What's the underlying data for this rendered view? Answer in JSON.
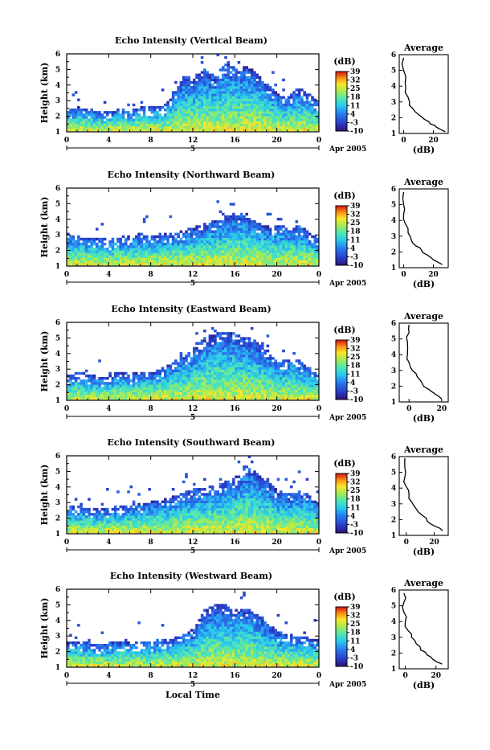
{
  "figure": {
    "date_label": "Apr 2005",
    "day_label": "5",
    "bottom_xlabel": "Local Time",
    "ylabel": "Height (km)",
    "colorbar_unit": "(dB)",
    "colorbar_ticks": [
      "39",
      "32",
      "25",
      "18",
      "11",
      "4",
      "-3",
      "-10"
    ],
    "avg_title": "Average",
    "avg_xlabel": "(dB)"
  },
  "panels": [
    {
      "title": "Echo Intensity (Vertical Beam)",
      "avg_xticks": [
        "0",
        "20"
      ]
    },
    {
      "title": "Echo Intensity (Northward Beam)",
      "avg_xticks": [
        "0",
        "20"
      ]
    },
    {
      "title": "Echo Intensity (Eastward Beam)",
      "avg_xticks": [
        "0",
        "20"
      ]
    },
    {
      "title": "Echo Intensity (Southward Beam)",
      "avg_xticks": [
        "0",
        "20"
      ]
    },
    {
      "title": "Echo Intensity (Westward Beam)",
      "avg_xticks": [
        "0",
        "20"
      ]
    }
  ],
  "chart_data": [
    {
      "type": "heatmap",
      "title": "Echo Intensity (Vertical Beam)",
      "xlabel": "",
      "ylabel": "Height (km)",
      "xlim": [
        0,
        24
      ],
      "ylim": [
        1,
        6
      ],
      "xticks": [
        "0",
        "4",
        "8",
        "12",
        "16",
        "20",
        "0"
      ],
      "yticks": [
        "1",
        "2",
        "3",
        "4",
        "5",
        "6"
      ],
      "colorbar": {
        "unit": "dB",
        "range": [
          -10,
          39
        ],
        "ticks": [
          39,
          32,
          25,
          18,
          11,
          4,
          -3,
          -10
        ]
      },
      "echo_top_km": [
        2.3,
        2.5,
        2.4,
        2.3,
        2.2,
        2.4,
        2.3,
        2.5,
        2.6,
        2.5,
        3.3,
        4.5,
        4.5,
        4.9,
        4.5,
        5.3,
        5.0,
        5.1,
        4.7,
        4.0,
        3.3,
        3.2,
        3.8,
        3.3,
        2.8
      ],
      "average_profile": {
        "x_db": [
          28,
          22,
          18,
          14,
          10,
          6,
          4,
          1,
          1,
          0,
          0
        ],
        "height_km": [
          1.1,
          1.4,
          1.6,
          1.9,
          2.2,
          2.6,
          3.0,
          3.6,
          4.2,
          5.0,
          5.8
        ],
        "xlim": [
          -3,
          30
        ]
      }
    },
    {
      "type": "heatmap",
      "title": "Echo Intensity (Northward Beam)",
      "xlabel": "",
      "ylabel": "Height (km)",
      "xlim": [
        0,
        24
      ],
      "ylim": [
        1,
        6
      ],
      "xticks": [
        "0",
        "4",
        "8",
        "12",
        "16",
        "20",
        "0"
      ],
      "yticks": [
        "1",
        "2",
        "3",
        "4",
        "5",
        "6"
      ],
      "colorbar": {
        "unit": "dB",
        "range": [
          -10,
          39
        ],
        "ticks": [
          39,
          32,
          25,
          18,
          11,
          4,
          -3,
          -10
        ]
      },
      "echo_top_km": [
        3.0,
        2.9,
        2.8,
        2.7,
        2.6,
        2.8,
        2.9,
        3.0,
        2.9,
        3.0,
        3.0,
        3.2,
        3.4,
        3.7,
        3.8,
        4.2,
        4.3,
        4.4,
        3.7,
        3.5,
        3.6,
        3.4,
        3.6,
        3.0,
        2.8
      ],
      "average_profile": {
        "x_db": [
          26,
          20,
          16,
          12,
          8,
          5,
          3,
          1,
          0,
          0,
          0
        ],
        "height_km": [
          1.2,
          1.5,
          1.8,
          2.1,
          2.4,
          2.8,
          3.2,
          3.8,
          4.4,
          5.0,
          5.8
        ],
        "xlim": [
          -3,
          30
        ]
      }
    },
    {
      "type": "heatmap",
      "title": "Echo Intensity (Eastward Beam)",
      "xlabel": "",
      "ylabel": "Height (km)",
      "xlim": [
        0,
        24
      ],
      "ylim": [
        1,
        6
      ],
      "xticks": [
        "0",
        "4",
        "8",
        "12",
        "16",
        "20",
        "0"
      ],
      "yticks": [
        "1",
        "2",
        "3",
        "4",
        "5",
        "6"
      ],
      "colorbar": {
        "unit": "dB",
        "range": [
          -10,
          39
        ],
        "ticks": [
          39,
          32,
          25,
          18,
          11,
          4,
          -3,
          -10
        ]
      },
      "echo_top_km": [
        2.6,
        2.7,
        2.6,
        2.4,
        2.5,
        2.7,
        2.6,
        2.8,
        2.7,
        3.0,
        3.4,
        3.7,
        4.2,
        5.0,
        5.2,
        5.3,
        5.2,
        5.0,
        4.7,
        4.1,
        3.4,
        3.6,
        3.5,
        3.0,
        2.6
      ],
      "average_profile": {
        "x_db": [
          20,
          16,
          12,
          8,
          5,
          2,
          0,
          -1,
          -1,
          0,
          0
        ],
        "height_km": [
          1.2,
          1.5,
          1.8,
          2.2,
          2.6,
          3.0,
          3.5,
          4.0,
          4.8,
          5.4,
          5.9
        ],
        "xlim": [
          -6,
          24
        ]
      }
    },
    {
      "type": "heatmap",
      "title": "Echo Intensity (Southward Beam)",
      "xlabel": "",
      "ylabel": "Height (km)",
      "xlim": [
        0,
        24
      ],
      "ylim": [
        1,
        6
      ],
      "xticks": [
        "0",
        "4",
        "8",
        "12",
        "16",
        "20",
        "0"
      ],
      "yticks": [
        "1",
        "2",
        "3",
        "4",
        "5",
        "6"
      ],
      "colorbar": {
        "unit": "dB",
        "range": [
          -10,
          39
        ],
        "ticks": [
          39,
          32,
          25,
          18,
          11,
          4,
          -3,
          -10
        ]
      },
      "echo_top_km": [
        2.8,
        2.7,
        2.6,
        2.5,
        2.6,
        2.7,
        2.8,
        2.9,
        3.0,
        3.1,
        3.3,
        3.6,
        3.8,
        3.9,
        4.0,
        4.3,
        4.6,
        5.3,
        4.8,
        4.3,
        3.7,
        3.5,
        3.7,
        3.4,
        2.8
      ],
      "average_profile": {
        "x_db": [
          26,
          20,
          15,
          11,
          7,
          4,
          2,
          0,
          -1,
          -1,
          -1
        ],
        "height_km": [
          1.3,
          1.6,
          1.9,
          2.3,
          2.7,
          3.1,
          3.6,
          4.1,
          4.7,
          5.3,
          5.9
        ],
        "xlim": [
          -5,
          30
        ]
      }
    },
    {
      "type": "heatmap",
      "title": "Echo Intensity (Westward Beam)",
      "xlabel": "Local Time",
      "ylabel": "Height (km)",
      "xlim": [
        0,
        24
      ],
      "ylim": [
        1,
        6
      ],
      "xticks": [
        "0",
        "4",
        "8",
        "12",
        "16",
        "20",
        "0"
      ],
      "yticks": [
        "1",
        "2",
        "3",
        "4",
        "5",
        "6"
      ],
      "colorbar": {
        "unit": "dB",
        "range": [
          -10,
          39
        ],
        "ticks": [
          39,
          32,
          25,
          18,
          11,
          4,
          -3,
          -10
        ]
      },
      "echo_top_km": [
        2.6,
        2.6,
        2.5,
        2.4,
        2.5,
        2.6,
        2.5,
        2.6,
        2.6,
        2.7,
        2.8,
        3.0,
        3.4,
        4.6,
        5.0,
        4.9,
        4.6,
        4.7,
        4.4,
        3.8,
        3.2,
        3.1,
        2.9,
        2.8,
        2.7
      ],
      "average_profile": {
        "x_db": [
          24,
          18,
          14,
          10,
          7,
          4,
          2,
          0,
          -1,
          -1,
          -1
        ],
        "height_km": [
          1.3,
          1.6,
          1.9,
          2.2,
          2.6,
          3.0,
          3.4,
          4.0,
          4.6,
          5.2,
          5.8
        ],
        "xlim": [
          -4,
          28
        ]
      }
    }
  ]
}
